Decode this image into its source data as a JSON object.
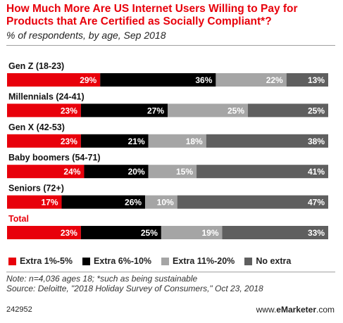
{
  "title": "How Much More Are US Internet Users Willing to Pay for Products that Are Certified as Socially Compliant*?",
  "subtitle": "% of respondents, by age, Sep 2018",
  "chart_data": {
    "type": "bar",
    "orientation": "horizontal",
    "stacked": true,
    "normalized_100": true,
    "categories": [
      "Gen Z (18-23)",
      "Millennials (24-41)",
      "Gen X (42-53)",
      "Baby boomers (54-71)",
      "Seniors (72+)",
      "Total"
    ],
    "category_emphasis": [
      false,
      false,
      false,
      false,
      false,
      true
    ],
    "series": [
      {
        "name": "Extra 1%-5%",
        "color": "#e8000b",
        "values": [
          29,
          23,
          23,
          24,
          17,
          23
        ]
      },
      {
        "name": "Extra 6%-10%",
        "color": "#000000",
        "values": [
          36,
          27,
          21,
          20,
          26,
          25
        ]
      },
      {
        "name": "Extra 11%-20%",
        "color": "#a5a5a5",
        "values": [
          22,
          25,
          18,
          15,
          10,
          19
        ]
      },
      {
        "name": "No extra",
        "color": "#5f5f5f",
        "values": [
          13,
          25,
          38,
          41,
          47,
          33
        ]
      }
    ],
    "value_suffix": "%",
    "legend_position": "bottom",
    "grid": false
  },
  "note": "Note: n=4,036 ages 18; *such as being sustainable",
  "source": "Source: Deloitte, \"2018 Holiday Survey of Consumers,\" Oct 23, 2018",
  "chart_id": "242952",
  "brand": {
    "prefix": "www.",
    "name": "eMarketer",
    "suffix": ".com"
  }
}
